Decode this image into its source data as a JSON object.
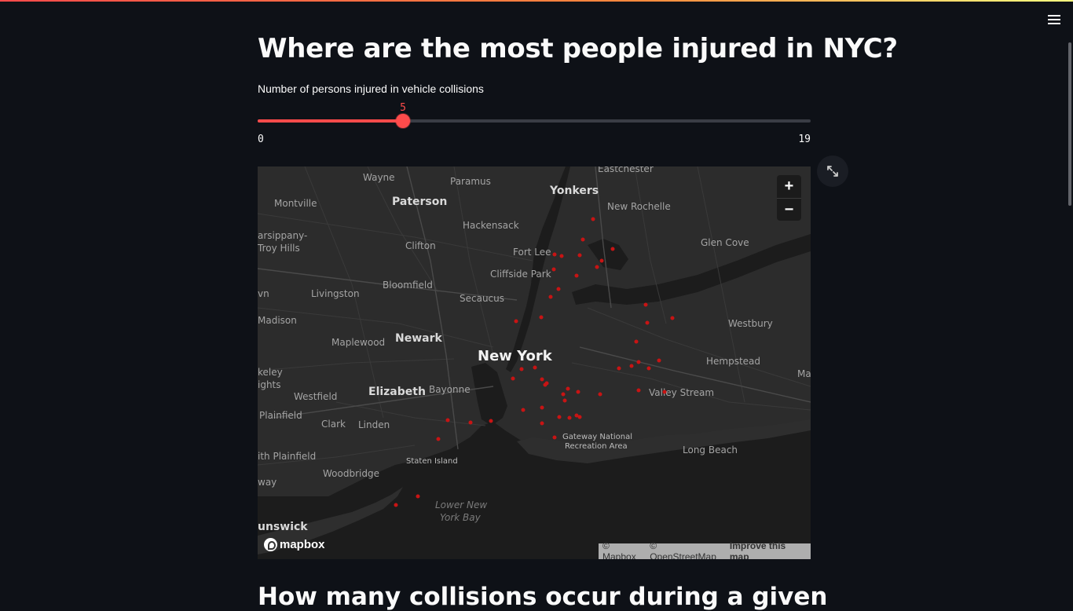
{
  "page": {
    "title": "Where are the most people injured in NYC?",
    "next_section_title": "How many collisions occur during a given"
  },
  "slider": {
    "label": "Number of persons injured in vehicle collisions",
    "min": 0,
    "max": 19,
    "value": 5,
    "min_label": "0",
    "max_label": "19",
    "value_label": "5",
    "accent_color": "#ff4b4b"
  },
  "map": {
    "zoom_in_label": "+",
    "zoom_out_label": "−",
    "logo_text": "mapbox",
    "attribution_mapbox": "© Mapbox",
    "attribution_osm": "© OpenStreetMap",
    "improve_link": "Improve this map",
    "point_color": "#c81414",
    "places": [
      {
        "name": "Eastchester",
        "kind": "town"
      },
      {
        "name": "Wayne",
        "kind": "town"
      },
      {
        "name": "Paramus",
        "kind": "town"
      },
      {
        "name": "Yonkers",
        "kind": "city"
      },
      {
        "name": "New Rochelle",
        "kind": "town"
      },
      {
        "name": "Montville",
        "kind": "town"
      },
      {
        "name": "Paterson",
        "kind": "city"
      },
      {
        "name": "Hackensack",
        "kind": "town"
      },
      {
        "name": "arsippany-",
        "kind": "town"
      },
      {
        "name": "Troy Hills",
        "kind": "town"
      },
      {
        "name": "Clifton",
        "kind": "town"
      },
      {
        "name": "Fort Lee",
        "kind": "town"
      },
      {
        "name": "Glen Cove",
        "kind": "town"
      },
      {
        "name": "Cliffside Park",
        "kind": "town"
      },
      {
        "name": "Bloomfield",
        "kind": "town"
      },
      {
        "name": "vn",
        "kind": "town"
      },
      {
        "name": "Livingston",
        "kind": "town"
      },
      {
        "name": "Secaucus",
        "kind": "town"
      },
      {
        "name": "Madison",
        "kind": "town"
      },
      {
        "name": "Westbury",
        "kind": "town"
      },
      {
        "name": "Maplewood",
        "kind": "town"
      },
      {
        "name": "Newark",
        "kind": "city"
      },
      {
        "name": "New York",
        "kind": "big"
      },
      {
        "name": "Hempstead",
        "kind": "town"
      },
      {
        "name": "keley",
        "kind": "town"
      },
      {
        "name": "ights",
        "kind": "town"
      },
      {
        "name": "Ma",
        "kind": "town"
      },
      {
        "name": "Elizabeth",
        "kind": "city"
      },
      {
        "name": "Bayonne",
        "kind": "town"
      },
      {
        "name": "Valley Stream",
        "kind": "town"
      },
      {
        "name": "Westfield",
        "kind": "town"
      },
      {
        "name": "Plainfield",
        "kind": "town"
      },
      {
        "name": "Clark",
        "kind": "town"
      },
      {
        "name": "Linden",
        "kind": "town"
      },
      {
        "name": "Gateway National",
        "kind": "small"
      },
      {
        "name": "Recreation Area",
        "kind": "small"
      },
      {
        "name": "Long Beach",
        "kind": "town"
      },
      {
        "name": "ith Plainfield",
        "kind": "town"
      },
      {
        "name": "Staten Island",
        "kind": "small"
      },
      {
        "name": "Woodbridge",
        "kind": "town"
      },
      {
        "name": "way",
        "kind": "town"
      },
      {
        "name": "Lower New",
        "kind": "water"
      },
      {
        "name": "York Bay",
        "kind": "water"
      },
      {
        "name": "unswick",
        "kind": "city"
      }
    ]
  }
}
